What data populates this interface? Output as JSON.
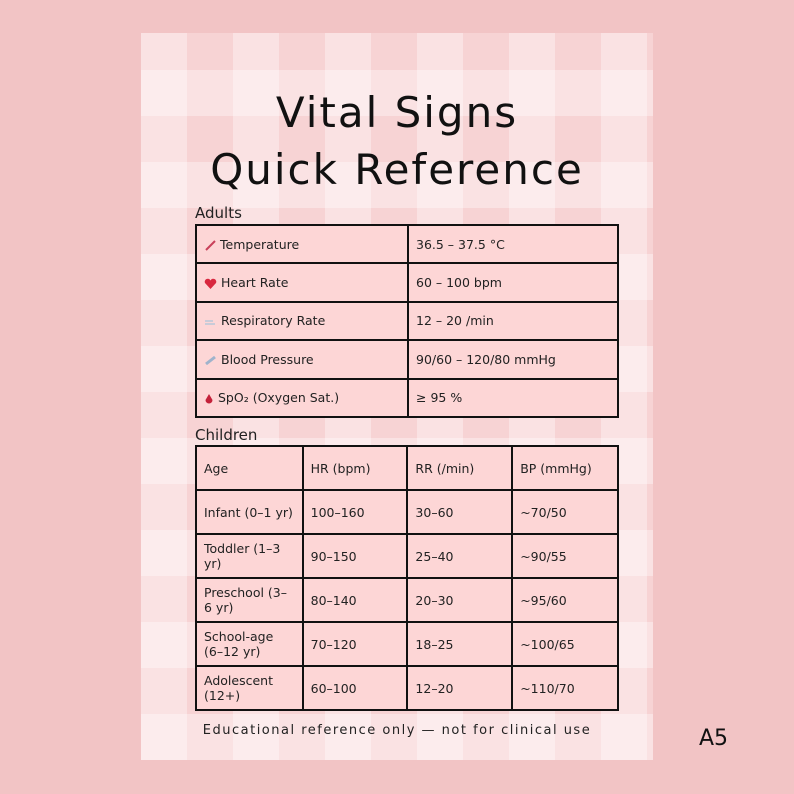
{
  "title": {
    "line1": "Vital Signs",
    "line2": "Quick Reference"
  },
  "adults": {
    "label": "Adults",
    "rows": [
      [
        "Temperature",
        "36.5 – 37.5 °C"
      ],
      [
        "Heart Rate",
        "60 – 100 bpm"
      ],
      [
        "Respiratory Rate",
        "12 – 20 /min"
      ],
      [
        "Blood Pressure",
        "90/60 – 120/80 mmHg"
      ],
      [
        "SpO₂ (Oxygen Sat.)",
        "≥ 95 %"
      ]
    ]
  },
  "children": {
    "label": "Children",
    "header": [
      "Age",
      "HR (bpm)",
      "RR (/min)",
      "BP (mmHg)"
    ],
    "rows": [
      [
        "Infant (0–1 yr)",
        "100–160",
        "30–60",
        "~70/50"
      ],
      [
        "Toddler (1–3 yr)",
        "90–150",
        "25–40",
        "~90/55"
      ],
      [
        "Preschool (3–6 yr)",
        "80–140",
        "20–30",
        "~95/60"
      ],
      [
        "School-age (6–12 yr)",
        "70–120",
        "18–25",
        "~100/65"
      ],
      [
        "Adolescent (12+)",
        "60–100",
        "12–20",
        "~110/70"
      ]
    ]
  },
  "footer": "Educational reference only — not for clinical use",
  "size": "A5"
}
